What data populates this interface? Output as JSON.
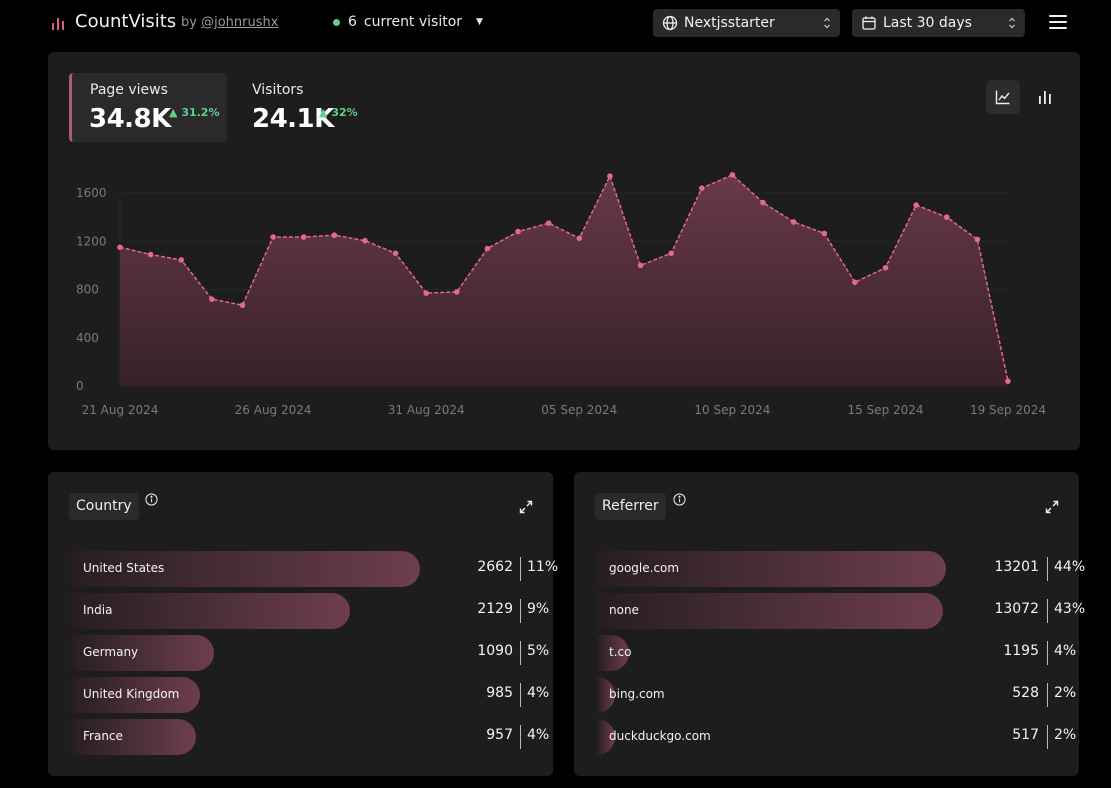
{
  "header": {
    "title": "CountVisits",
    "by": "by",
    "handle": "@johnrushx",
    "visitor_count": "6",
    "visitor_label": "current visitor",
    "site_select": "Nextjsstarter",
    "range_select": "Last 30 days"
  },
  "stats": {
    "pageviews": {
      "label": "Page views",
      "value": "34.8K",
      "change": "31.2%"
    },
    "visitors": {
      "label": "Visitors",
      "value": "24.1K",
      "change": "32%"
    }
  },
  "chart_data": {
    "type": "area",
    "title": "Page views",
    "x": [
      "21 Aug 2024",
      "22 Aug 2024",
      "23 Aug 2024",
      "24 Aug 2024",
      "25 Aug 2024",
      "26 Aug 2024",
      "27 Aug 2024",
      "28 Aug 2024",
      "29 Aug 2024",
      "30 Aug 2024",
      "31 Aug 2024",
      "01 Sep 2024",
      "02 Sep 2024",
      "03 Sep 2024",
      "04 Sep 2024",
      "05 Sep 2024",
      "06 Sep 2024",
      "07 Sep 2024",
      "08 Sep 2024",
      "09 Sep 2024",
      "10 Sep 2024",
      "11 Sep 2024",
      "12 Sep 2024",
      "13 Sep 2024",
      "14 Sep 2024",
      "15 Sep 2024",
      "16 Sep 2024",
      "17 Sep 2024",
      "18 Sep 2024",
      "19 Sep 2024"
    ],
    "values": [
      1150,
      1090,
      1045,
      720,
      670,
      1235,
      1235,
      1250,
      1205,
      1100,
      770,
      780,
      1140,
      1280,
      1350,
      1225,
      1740,
      1000,
      1100,
      1640,
      1750,
      1520,
      1360,
      1265,
      860,
      980,
      1500,
      1400,
      1215,
      40
    ],
    "xticks": [
      "21 Aug 2024",
      "26 Aug 2024",
      "31 Aug 2024",
      "05 Sep 2024",
      "10 Sep 2024",
      "15 Sep 2024",
      "19 Sep 2024"
    ],
    "yticks": [
      0,
      400,
      800,
      1200,
      1600
    ],
    "ylim": [
      0,
      1600
    ],
    "color": "#e3688f"
  },
  "country": {
    "title": "Country",
    "rows": [
      {
        "label": "United States",
        "count": "2662",
        "pct": "11%",
        "value": 2662
      },
      {
        "label": "India",
        "count": "2129",
        "pct": "9%",
        "value": 2129
      },
      {
        "label": "Germany",
        "count": "1090",
        "pct": "5%",
        "value": 1090
      },
      {
        "label": "United Kingdom",
        "count": "985",
        "pct": "4%",
        "value": 985
      },
      {
        "label": "France",
        "count": "957",
        "pct": "4%",
        "value": 957
      }
    ]
  },
  "referrer": {
    "title": "Referrer",
    "rows": [
      {
        "label": "google.com",
        "count": "13201",
        "pct": "44%",
        "value": 13201
      },
      {
        "label": "none",
        "count": "13072",
        "pct": "43%",
        "value": 13072
      },
      {
        "label": "t.co",
        "count": "1195",
        "pct": "4%",
        "value": 1195
      },
      {
        "label": "bing.com",
        "count": "528",
        "pct": "2%",
        "value": 528
      },
      {
        "label": "duckduckgo.com",
        "count": "517",
        "pct": "2%",
        "value": 517
      }
    ]
  },
  "icons": {
    "logo": "bar-chart-icon",
    "site": "globe-icon",
    "range": "calendar-icon",
    "menu": "hamburger-menu-icon",
    "line_view": "line-chart-icon",
    "bar_view": "bar-chart-icon",
    "info": "info-icon",
    "expand": "expand-icon",
    "accent": "#e3688f",
    "positive": "#5fd18a"
  }
}
